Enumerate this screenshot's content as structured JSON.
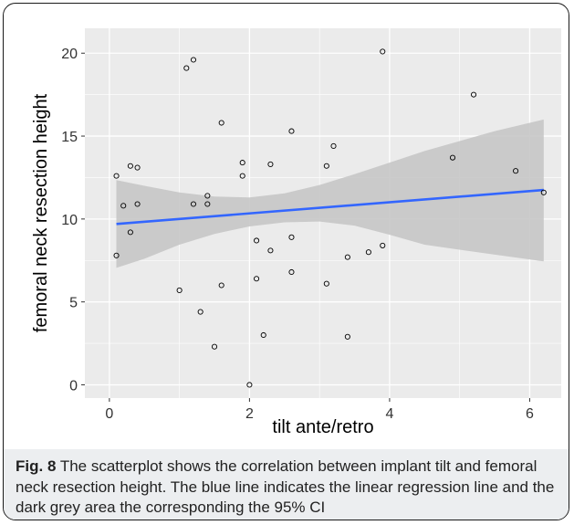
{
  "chart_data": {
    "type": "scatter",
    "xlabel": "tilt ante/retro",
    "ylabel": "femoral neck resection height",
    "xlim": [
      -0.35,
      6.45
    ],
    "ylim": [
      -0.8,
      21.5
    ],
    "xticks": [
      0,
      2,
      4,
      6
    ],
    "yticks": [
      0,
      5,
      10,
      15,
      20
    ],
    "grid": true,
    "points": [
      {
        "x": 0.1,
        "y": 12.6
      },
      {
        "x": 0.1,
        "y": 7.8
      },
      {
        "x": 0.2,
        "y": 10.8
      },
      {
        "x": 0.3,
        "y": 13.2
      },
      {
        "x": 0.3,
        "y": 9.2
      },
      {
        "x": 0.4,
        "y": 13.1
      },
      {
        "x": 0.4,
        "y": 10.9
      },
      {
        "x": 1.0,
        "y": 5.7
      },
      {
        "x": 1.1,
        "y": 19.1
      },
      {
        "x": 1.2,
        "y": 19.6
      },
      {
        "x": 1.2,
        "y": 10.9
      },
      {
        "x": 1.3,
        "y": 4.4
      },
      {
        "x": 1.4,
        "y": 11.4
      },
      {
        "x": 1.4,
        "y": 10.9
      },
      {
        "x": 1.5,
        "y": 2.3
      },
      {
        "x": 1.6,
        "y": 15.8
      },
      {
        "x": 1.6,
        "y": 6.0
      },
      {
        "x": 1.9,
        "y": 13.4
      },
      {
        "x": 1.9,
        "y": 12.6
      },
      {
        "x": 2.0,
        "y": 0.0
      },
      {
        "x": 2.1,
        "y": 8.7
      },
      {
        "x": 2.1,
        "y": 6.4
      },
      {
        "x": 2.2,
        "y": 3.0
      },
      {
        "x": 2.3,
        "y": 13.3
      },
      {
        "x": 2.3,
        "y": 8.1
      },
      {
        "x": 2.6,
        "y": 15.3
      },
      {
        "x": 2.6,
        "y": 8.9
      },
      {
        "x": 2.6,
        "y": 6.8
      },
      {
        "x": 3.1,
        "y": 13.2
      },
      {
        "x": 3.1,
        "y": 6.1
      },
      {
        "x": 3.2,
        "y": 14.4
      },
      {
        "x": 3.4,
        "y": 7.7
      },
      {
        "x": 3.4,
        "y": 2.9
      },
      {
        "x": 3.7,
        "y": 8.0
      },
      {
        "x": 3.9,
        "y": 20.1
      },
      {
        "x": 3.9,
        "y": 8.4
      },
      {
        "x": 4.9,
        "y": 13.7
      },
      {
        "x": 5.2,
        "y": 17.5
      },
      {
        "x": 5.8,
        "y": 12.9
      },
      {
        "x": 6.2,
        "y": 11.6
      }
    ],
    "regression": {
      "x": [
        0.1,
        6.2
      ],
      "y": [
        9.7,
        11.75
      ]
    },
    "ci_band": {
      "x": [
        0.1,
        0.5,
        1.0,
        1.5,
        2.0,
        2.5,
        3.0,
        3.5,
        4.0,
        4.5,
        5.0,
        5.5,
        6.2
      ],
      "upper": [
        12.35,
        12.0,
        11.6,
        11.35,
        11.3,
        11.55,
        12.05,
        12.7,
        13.4,
        14.1,
        14.7,
        15.3,
        16.0
      ],
      "lower": [
        7.05,
        7.6,
        8.45,
        9.1,
        9.55,
        9.8,
        9.85,
        9.6,
        9.05,
        8.45,
        8.15,
        7.85,
        7.45
      ]
    },
    "colors": {
      "panel": "#ebebeb",
      "grid": "#ffffff",
      "band": "#c7c7c7",
      "line": "#3366ff",
      "point": "#000000"
    }
  },
  "caption": {
    "label": "Fig. 8",
    "text": "The scatterplot shows the correlation between implant tilt and femoral neck resection height. The blue line indicates the linear regression line and the dark grey area the corresponding the 95% CI"
  }
}
